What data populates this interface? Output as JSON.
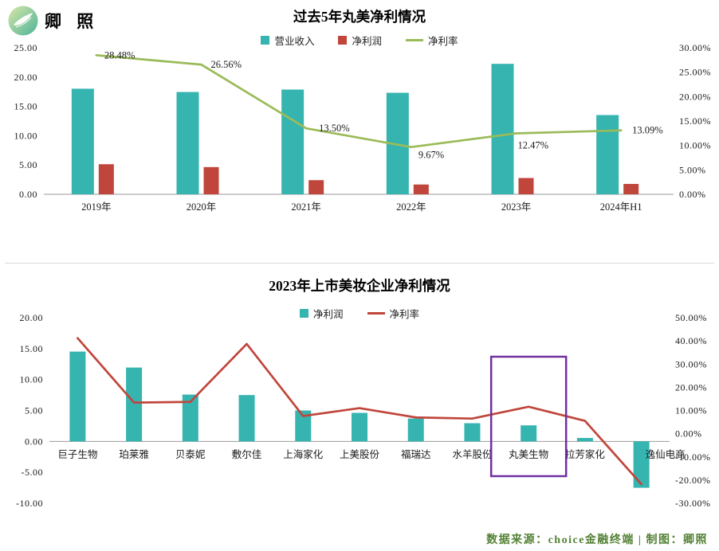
{
  "brand": {
    "name": "卿 照"
  },
  "footer": {
    "text": "数据来源：choice金融终端 | 制图：卿照"
  },
  "colors": {
    "teal": "#35b4b0",
    "red": "#c0463c",
    "green": "#9bbb59",
    "highlight": "#7030a0",
    "footer_text": "#538135",
    "axis_line": "#999999"
  },
  "chart_data": [
    {
      "type": "bar+line",
      "title": "过去5年丸美净利情况",
      "categories": [
        "2019年",
        "2020年",
        "2021年",
        "2022年",
        "2023年",
        "2024年H1"
      ],
      "series": [
        {
          "name": "营业收入",
          "kind": "bar",
          "color": "#35b4b0",
          "values": [
            18.01,
            17.45,
            17.87,
            17.32,
            22.26,
            13.52
          ]
        },
        {
          "name": "净利润",
          "kind": "bar",
          "color": "#c0463c",
          "values": [
            5.13,
            4.64,
            2.41,
            1.67,
            2.78,
            1.77
          ]
        },
        {
          "name": "净利率",
          "kind": "line",
          "color": "#9bbb59",
          "values": [
            28.48,
            26.56,
            13.5,
            9.67,
            12.47,
            13.09
          ],
          "point_labels": [
            "28.48%",
            "26.56%",
            "13.50%",
            "9.67%",
            "12.47%",
            "13.09%"
          ]
        }
      ],
      "left_axis": {
        "min": 0,
        "max": 25,
        "step": 5,
        "ticks": [
          "25.00",
          "20.00",
          "15.00",
          "10.00",
          "5.00",
          "0.00"
        ]
      },
      "right_axis": {
        "min": 0,
        "max": 30,
        "step": 5,
        "ticks": [
          "30.00%",
          "25.00%",
          "20.00%",
          "15.00%",
          "10.00%",
          "5.00%",
          "0.00%"
        ]
      },
      "grid": false,
      "legend_position": "top"
    },
    {
      "type": "bar+line",
      "title": "2023年上市美妆企业净利情况",
      "categories": [
        "巨子生物",
        "珀莱雅",
        "贝泰妮",
        "敷尔佳",
        "上海家化",
        "上美股份",
        "福瑞达",
        "水羊股份",
        "丸美生物",
        "拉芳家化",
        "逸仙电商"
      ],
      "series": [
        {
          "name": "净利润",
          "kind": "bar",
          "color": "#35b4b0",
          "values": [
            14.52,
            11.94,
            7.57,
            7.49,
            5.0,
            4.61,
            3.7,
            2.94,
            2.59,
            0.55,
            -7.5
          ]
        },
        {
          "name": "净利率",
          "kind": "line",
          "color": "#c0463c",
          "values": [
            41.2,
            13.4,
            13.7,
            38.7,
            7.6,
            11.0,
            7.0,
            6.5,
            11.6,
            5.5,
            -21.8
          ]
        }
      ],
      "left_axis": {
        "min": -10,
        "max": 20,
        "step": 5,
        "ticks": [
          "20.00",
          "15.00",
          "10.00",
          "5.00",
          "0.00",
          "-5.00",
          "-10.00"
        ]
      },
      "right_axis": {
        "min": -30,
        "max": 50,
        "step": 10,
        "ticks": [
          "50.00%",
          "40.00%",
          "30.00%",
          "20.00%",
          "10.00%",
          "0.00%",
          "-10.00%",
          "-20.00%",
          "-30.00%"
        ]
      },
      "highlight": {
        "category": "丸美生物",
        "color": "#7030a0"
      },
      "grid": false,
      "legend_position": "top"
    }
  ]
}
